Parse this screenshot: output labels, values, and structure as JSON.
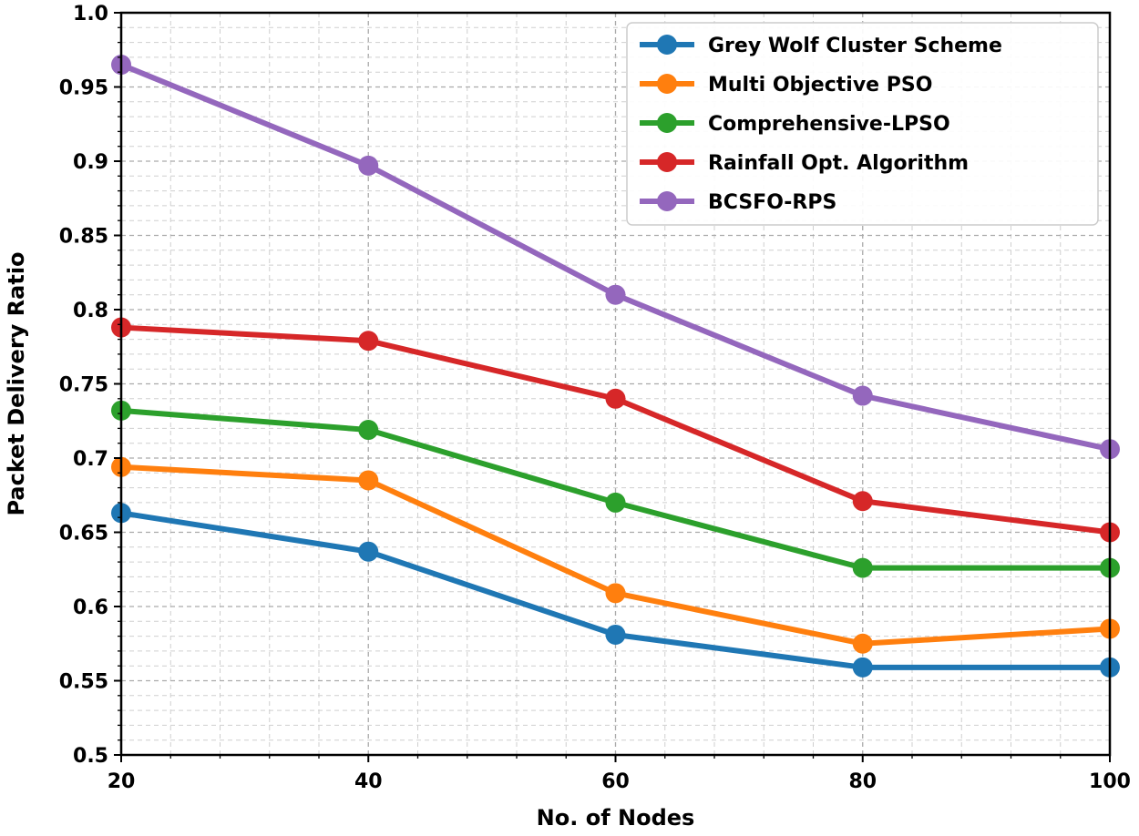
{
  "chart_data": {
    "type": "line",
    "title": "",
    "xlabel": "No. of Nodes",
    "ylabel": "Packet Delivery Ratio",
    "x": [
      20,
      40,
      60,
      80,
      100
    ],
    "xlim": [
      20,
      100
    ],
    "ylim": [
      0.5,
      1.0
    ],
    "xticks": [
      "20",
      "40",
      "60",
      "80",
      "100"
    ],
    "yticks": [
      "0.5",
      "0.55",
      "0.6",
      "0.65",
      "0.7",
      "0.75",
      "0.8",
      "0.85",
      "0.9",
      "0.95",
      "1.0"
    ],
    "grid": true,
    "legend_position": "top-right",
    "series": [
      {
        "name": "Grey Wolf Cluster Scheme",
        "color": "#1f77b4",
        "values": [
          0.663,
          0.637,
          0.581,
          0.559,
          0.559
        ]
      },
      {
        "name": "Multi Objective PSO",
        "color": "#ff7f0e",
        "values": [
          0.694,
          0.685,
          0.609,
          0.575,
          0.585
        ]
      },
      {
        "name": "Comprehensive-LPSO",
        "color": "#2ca02c",
        "values": [
          0.732,
          0.719,
          0.67,
          0.626,
          0.626
        ]
      },
      {
        "name": "Rainfall Opt. Algorithm",
        "color": "#d62728",
        "values": [
          0.788,
          0.779,
          0.74,
          0.671,
          0.65
        ]
      },
      {
        "name": "BCSFO-RPS",
        "color": "#9467bd",
        "values": [
          0.965,
          0.897,
          0.81,
          0.742,
          0.706
        ]
      }
    ]
  }
}
